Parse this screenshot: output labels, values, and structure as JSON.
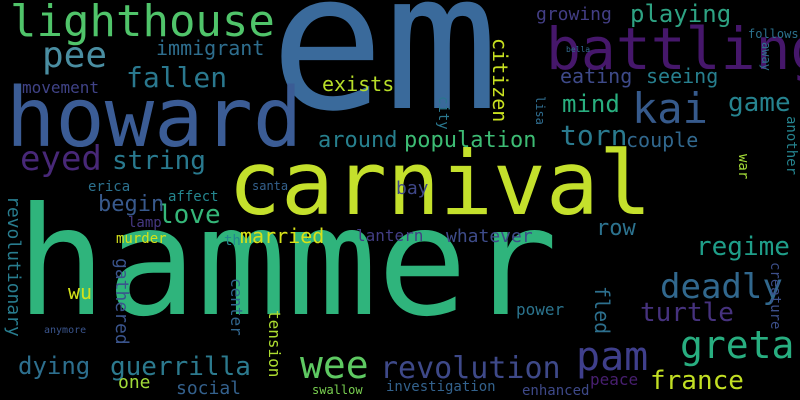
{
  "wordcloud": {
    "background": "#000000",
    "words": {
      "em": {
        "text": "em",
        "color": "#3a6a9b"
      },
      "hammer": {
        "text": "hammer",
        "color": "#2fb47c"
      },
      "carnival": {
        "text": "carnival",
        "color": "#c4e02c"
      },
      "howard": {
        "text": "howard",
        "color": "#3b5c95"
      },
      "lighthouse": {
        "text": "lighthouse",
        "color": "#50c46a"
      },
      "battling": {
        "text": "battling",
        "color": "#46176b"
      },
      "pee": {
        "text": "pee",
        "color": "#4a8ea2"
      },
      "kai": {
        "text": "kai",
        "color": "#365a8c"
      },
      "greta": {
        "text": "greta",
        "color": "#28ae80"
      },
      "pam": {
        "text": "pam",
        "color": "#3f3f8c"
      },
      "eyed": {
        "text": "eyed",
        "color": "#482878"
      },
      "fallen": {
        "text": "fallen",
        "color": "#2a788e"
      },
      "deadly": {
        "text": "deadly",
        "color": "#31688e"
      },
      "wee": {
        "text": "wee",
        "color": "#5ec962"
      },
      "revolution": {
        "text": "revolution",
        "color": "#3e4989"
      },
      "guerrilla": {
        "text": "guerrilla",
        "color": "#2c7a8e"
      },
      "dying": {
        "text": "dying",
        "color": "#2d6f8e"
      },
      "france": {
        "text": "france",
        "color": "#c2df23"
      },
      "torn": {
        "text": "torn",
        "color": "#2a7a8e"
      },
      "game": {
        "text": "game",
        "color": "#26838f"
      },
      "regime": {
        "text": "regime",
        "color": "#1f9e89"
      },
      "turtle": {
        "text": "turtle",
        "color": "#46327e"
      },
      "love": {
        "text": "love",
        "color": "#35b779"
      },
      "string": {
        "text": "string",
        "color": "#29798e"
      },
      "playing": {
        "text": "playing",
        "color": "#2ea383"
      },
      "growing": {
        "text": "growing",
        "color": "#433e85"
      },
      "immigrant": {
        "text": "immigrant",
        "color": "#2e6e8e"
      },
      "mind": {
        "text": "mind",
        "color": "#29af7f"
      },
      "seeing": {
        "text": "seeing",
        "color": "#277f8e"
      },
      "eating": {
        "text": "eating",
        "color": "#3e4a89"
      },
      "couple": {
        "text": "couple",
        "color": "#31688e"
      },
      "around": {
        "text": "around",
        "color": "#27808e"
      },
      "population": {
        "text": "population",
        "color": "#3dbc74"
      },
      "exists": {
        "text": "exists",
        "color": "#b8de29"
      },
      "movement": {
        "text": "movement",
        "color": "#404387"
      },
      "begin": {
        "text": "begin",
        "color": "#38598c"
      },
      "married": {
        "text": "married",
        "color": "#d8e219"
      },
      "lantern": {
        "text": "lantern",
        "color": "#433e85"
      },
      "whatever": {
        "text": "whatever",
        "color": "#3e4c8a"
      },
      "row": {
        "text": "row",
        "color": "#2c728e"
      },
      "bay": {
        "text": "bay",
        "color": "#3f4788"
      },
      "wu": {
        "text": "wu",
        "color": "#d2e21b"
      },
      "social": {
        "text": "social",
        "color": "#34618d"
      },
      "one": {
        "text": "one",
        "color": "#a0da39"
      },
      "peace": {
        "text": "peace",
        "color": "#481f70"
      },
      "enhanced": {
        "text": "enhanced",
        "color": "#3e4989"
      },
      "investigation": {
        "text": "investigation",
        "color": "#33628d"
      },
      "power": {
        "text": "power",
        "color": "#2b748e"
      },
      "swallow": {
        "text": "swallow",
        "color": "#7ad151"
      },
      "citizen": {
        "text": "citizen",
        "color": "#c8e020"
      },
      "revolutionary": {
        "text": "revolutionary",
        "color": "#287c8e"
      },
      "gathered": {
        "text": "gathered",
        "color": "#3a548c"
      },
      "center": {
        "text": "center",
        "color": "#31668e"
      },
      "tension": {
        "text": "tension",
        "color": "#ad dc30"
      },
      "fled": {
        "text": "fled",
        "color": "#2d708e"
      },
      "creature": {
        "text": "creature",
        "color": "#3c4f8a"
      },
      "city": {
        "text": "city",
        "color": "#2a778e"
      },
      "lisa": {
        "text": "lisa",
        "color": "#2f6c8e"
      },
      "erica": {
        "text": "erica",
        "color": "#2c718e"
      },
      "affect": {
        "text": "affect",
        "color": "#24868e"
      },
      "lamp": {
        "text": "lamp",
        "color": "#453781"
      },
      "murder": {
        "text": "murder",
        "color": "#d5e21a"
      },
      "santa": {
        "text": "santa",
        "color": "#34618d"
      },
      "th": {
        "text": "th",
        "color": "#23888e"
      },
      "follows": {
        "text": "follows",
        "color": "#2c728e"
      },
      "bella": {
        "text": "bella",
        "color": "#31688e"
      },
      "away": {
        "text": "away",
        "color": "#2e6f8e"
      },
      "war": {
        "text": "war",
        "color": "#a2da37"
      },
      "another": {
        "text": "another",
        "color": "#25838e"
      },
      "anymore": {
        "text": "anymore",
        "color": "#3a548c"
      }
    }
  }
}
